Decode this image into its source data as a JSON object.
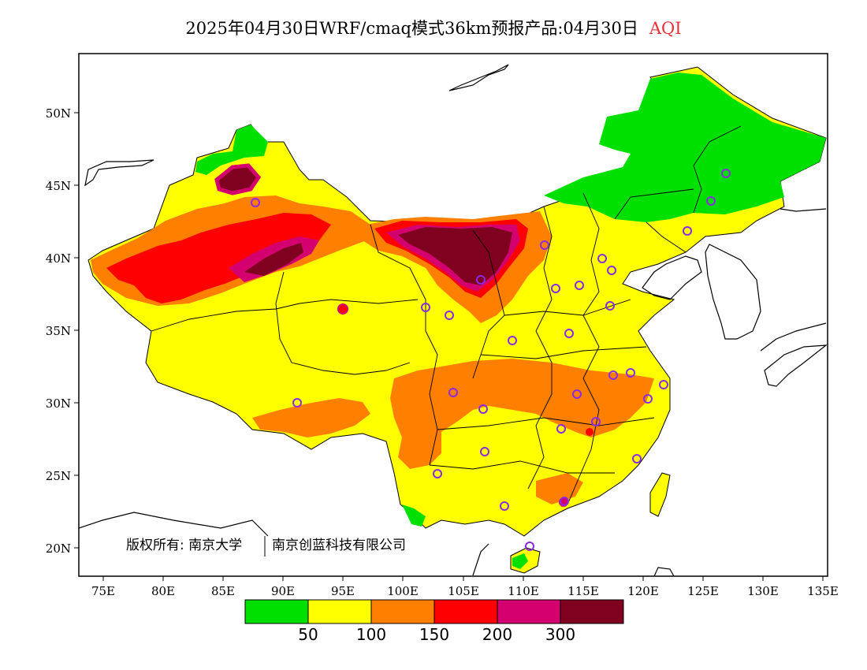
{
  "title": {
    "text": "2025年04月30日WRF/cmaq模式36km预报产品:04月30日",
    "variable": "AQI",
    "variable_color": "#e8303a"
  },
  "map": {
    "lon_ticks": [
      "75E",
      "80E",
      "85E",
      "90E",
      "95E",
      "100E",
      "105E",
      "110E",
      "115E",
      "120E",
      "125E",
      "130E",
      "135E"
    ],
    "lat_ticks": [
      "50N",
      "45N",
      "40N",
      "35N",
      "30N",
      "25N",
      "20N"
    ],
    "copyright": "版权所有: 南京大学",
    "copyright_company": "南京创蓝科技有限公司"
  },
  "colorbar": {
    "colors": [
      "#00e000",
      "#ffff00",
      "#ff8000",
      "#ff0000",
      "#d40070",
      "#800020"
    ],
    "labels": [
      "50",
      "100",
      "150",
      "200",
      "300"
    ]
  }
}
